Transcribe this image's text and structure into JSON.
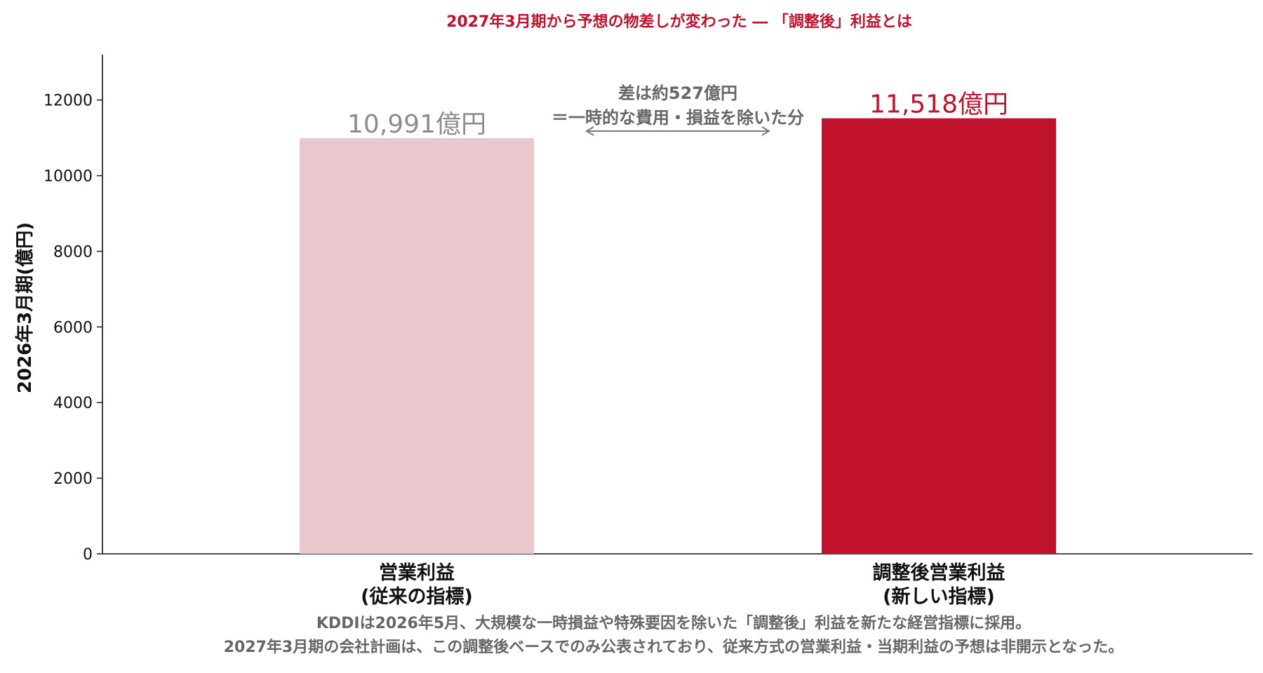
{
  "chart_data": {
    "type": "bar",
    "title": "2027年3月期から予想の物差しが変わった ― 「調整後」利益とは",
    "ylabel": "2026年3月期(億円)",
    "xlabel": "",
    "ylim": [
      0,
      13200
    ],
    "yticks": [
      "0",
      "2000",
      "4000",
      "6000",
      "8000",
      "10000",
      "12000"
    ],
    "categories": [
      [
        "営業利益",
        "(従来の指標)"
      ],
      [
        "調整後営業利益",
        "(新しい指標)"
      ]
    ],
    "values": [
      10991,
      11518
    ],
    "value_labels": [
      "10,991億円",
      "11,518億円"
    ],
    "bar_colors": [
      "#e8c8cd",
      "#c0122c"
    ],
    "value_label_colors": [
      "#8c8c8c",
      "#c0122c"
    ],
    "grid": false,
    "annotation": {
      "lines": [
        "差は約527億円",
        "＝一時的な費用・損益を除いた分"
      ],
      "arrow": "double-headed, between bars"
    },
    "footnote": [
      "KDDIは2026年5月、大規模な一時損益や特殊要因を除いた「調整後」利益を新たな経営指標に採用。",
      "2027年3月期の会社計画は、この調整後ベースでのみ公表されており、従来方式の営業利益・当期利益の予想は非開示となった。"
    ]
  }
}
